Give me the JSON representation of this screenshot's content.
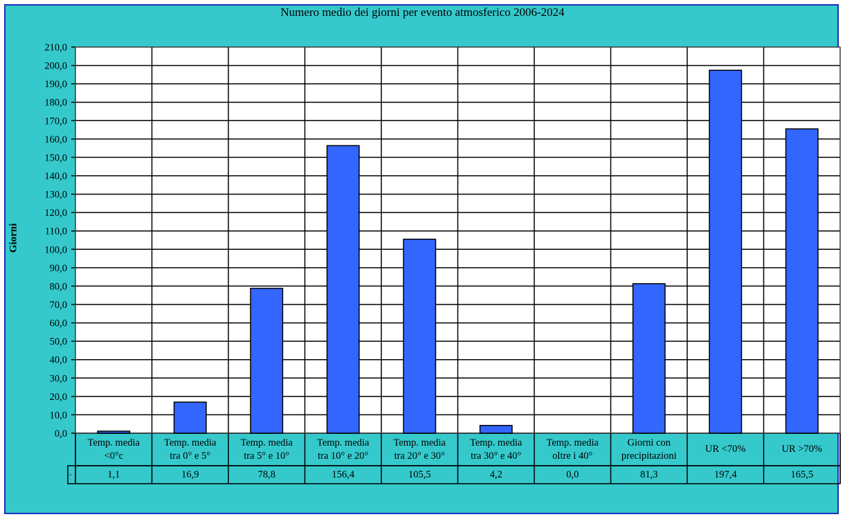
{
  "chart_data": {
    "type": "bar",
    "title": "Numero medio dei giorni per evento atmosferico 2006-2024",
    "ylabel": "Giorni",
    "xlabel": "",
    "ylim": [
      0,
      210
    ],
    "ytick_step": 10,
    "ytick_labels": [
      "0,0",
      "10,0",
      "20,0",
      "30,0",
      "40,0",
      "50,0",
      "60,0",
      "70,0",
      "80,0",
      "90,0",
      "100,0",
      "110,0",
      "120,0",
      "130,0",
      "140,0",
      "150,0",
      "160,0",
      "170,0",
      "180,0",
      "190,0",
      "200,0",
      "210,0"
    ],
    "grid": true,
    "categories": [
      "Temp. media\n<0°c",
      "Temp. media\ntra 0° e 5°",
      "Temp. media\ntra 5° e 10°",
      "Temp. media\ntra 10° e 20°",
      "Temp. media\ntra 20° e 30°",
      "Temp. media\ntra 30° e 40°",
      "Temp. media\noltre i 40°",
      "Giorni con\nprecipitazioni",
      "UR  <70%",
      "UR >70%"
    ],
    "values": [
      1.1,
      16.9,
      78.8,
      156.4,
      105.5,
      4.2,
      0.0,
      81.3,
      197.4,
      165.5
    ],
    "value_labels": [
      "1,1",
      "16,9",
      "78,8",
      "156,4",
      "105,5",
      "4,2",
      "0,0",
      "81,3",
      "197,4",
      "165,5"
    ],
    "data_table_marker": ".",
    "colors": {
      "bar": "#3366ff",
      "background": "#35c9cc",
      "plot_area": "#ffffff",
      "frame_border": "#1a2fb8"
    }
  }
}
